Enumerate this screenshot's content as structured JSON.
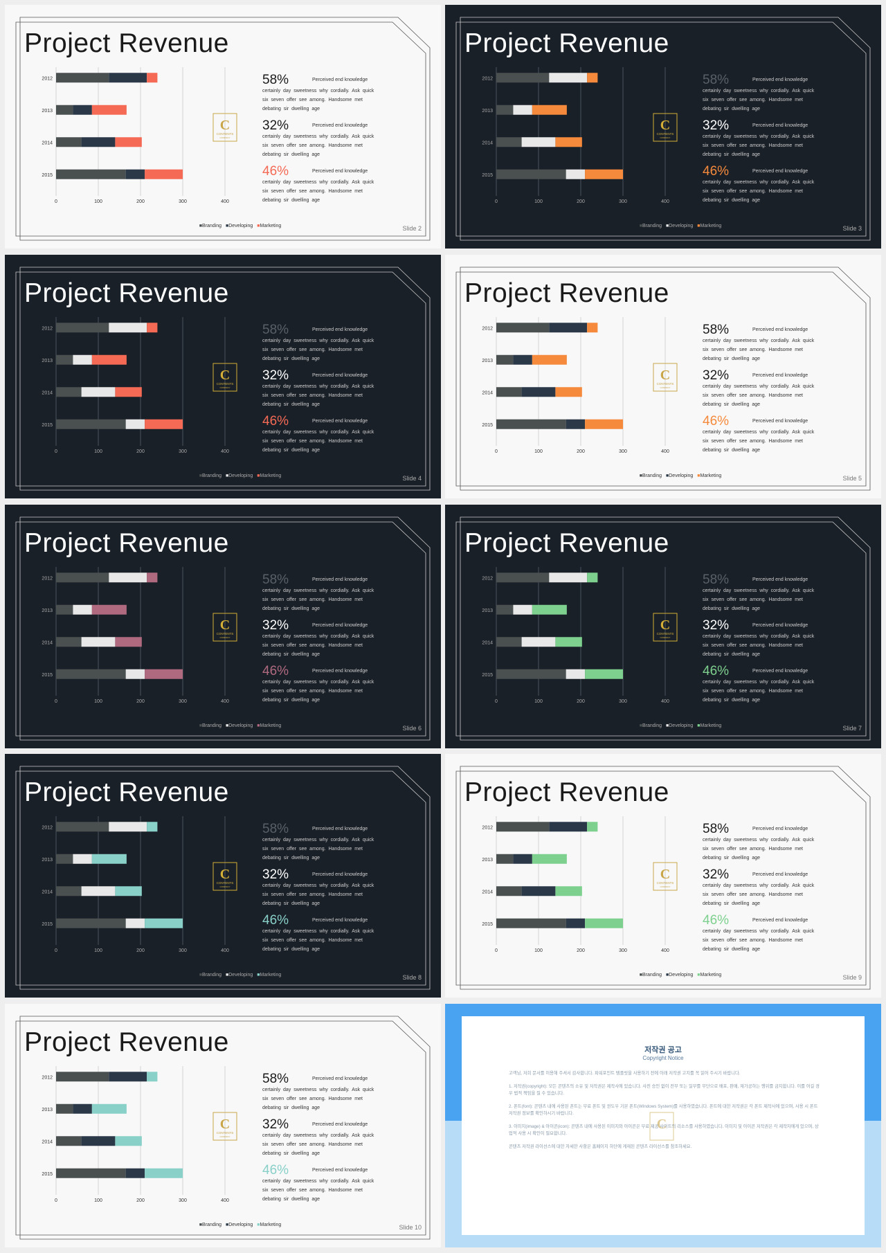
{
  "slide_title": "Project Revenue",
  "logo": {
    "letter": "C",
    "line1": "CONTENTS",
    "line2": "COMPANY"
  },
  "slide_label": "Slide",
  "stats": [
    {
      "value": "58%",
      "heading": "Perceived end knowledge",
      "body": "certainly day sweetness why cordially. Ask quick six seven offer see among. Handsome met debating sir dwelling age"
    },
    {
      "value": "32%",
      "heading": "Perceived end knowledge",
      "body": "certainly day sweetness why cordially. Ask quick six seven offer see among. Handsome met debating sir dwelling age"
    },
    {
      "value": "46%",
      "heading": "Perceived end knowledge",
      "body": "certainly day sweetness why cordially. Ask quick six seven offer see among. Handsome met debating sir dwelling age"
    }
  ],
  "chart_data": {
    "type": "bar",
    "orientation": "horizontal",
    "stacked": true,
    "categories": [
      "2012",
      "2013",
      "2014",
      "2015"
    ],
    "series": [
      {
        "name": "Branding",
        "values": [
          125,
          40,
          60,
          165
        ]
      },
      {
        "name": "Developing",
        "values": [
          90,
          45,
          80,
          45
        ]
      },
      {
        "name": "Marketing",
        "values": [
          25,
          82,
          63,
          90
        ]
      }
    ],
    "xticks": [
      "0",
      "100",
      "200",
      "300",
      "400"
    ],
    "xlim": [
      0,
      400
    ],
    "legend_position": "bottom",
    "grid": true
  },
  "slides": [
    {
      "number": "2",
      "theme": "light",
      "colors": {
        "branding": "#4a5050",
        "developing": "#2a3848",
        "marketing": "#f46a55",
        "value3": "#f46a55"
      }
    },
    {
      "number": "3",
      "theme": "dark",
      "colors": {
        "branding": "#4a5050",
        "developing": "#e8e8e8",
        "marketing": "#f58a3c",
        "value3": "#f58a3c"
      }
    },
    {
      "number": "4",
      "theme": "dark",
      "colors": {
        "branding": "#4a5050",
        "developing": "#e8e8e8",
        "marketing": "#f46a55",
        "value3": "#f46a55"
      }
    },
    {
      "number": "5",
      "theme": "light",
      "colors": {
        "branding": "#4a5050",
        "developing": "#2a3848",
        "marketing": "#f58a3c",
        "value3": "#f58a3c"
      }
    },
    {
      "number": "6",
      "theme": "dark",
      "colors": {
        "branding": "#4a5050",
        "developing": "#e8e8e8",
        "marketing": "#b06a80",
        "value3": "#b06a80"
      }
    },
    {
      "number": "7",
      "theme": "dark",
      "colors": {
        "branding": "#4a5050",
        "developing": "#e8e8e8",
        "marketing": "#7dd08e",
        "value3": "#7dd08e"
      }
    },
    {
      "number": "8",
      "theme": "dark",
      "colors": {
        "branding": "#4a5050",
        "developing": "#e8e8e8",
        "marketing": "#88d0c8",
        "value3": "#88d0c8"
      }
    },
    {
      "number": "9",
      "theme": "light",
      "colors": {
        "branding": "#4a5050",
        "developing": "#2a3848",
        "marketing": "#7dd08e",
        "value3": "#7dd08e"
      }
    },
    {
      "number": "10",
      "theme": "light",
      "colors": {
        "branding": "#4a5050",
        "developing": "#2a3848",
        "marketing": "#88d0c8",
        "value3": "#88d0c8"
      }
    }
  ],
  "notice": {
    "title": "저작권 공고",
    "subtitle": "Copyright Notice",
    "paragraphs": [
      "고객님, 저희 문서를 이용해 주셔서 감사합니다. 파워포인트 템플릿을 사용하기 전에 아래 저작권 고지를 꼭 읽어 주시기 바랍니다.",
      "1. 저작권(copyright): 모든 콘텐츠의 소유 및 저작권은 제작사에 있습니다. 사전 승인 없이 전부 또는 일부를 무단으로 배포, 판매, 재가공하는 행위를 금지합니다. 이를 어길 경우 법적 책임을 질 수 있습니다.",
      "2. 폰트(font): 콘텐츠 내에 사용된 폰트는 무료 폰트 및 윈도우 기본 폰트(Windows System)를 사용하였습니다. 폰트에 대한 저작권은 각 폰트 제작사에 있으며, 사용 시 폰트 저작권 정보를 확인하시기 바랍니다.",
      "3. 이미지(image) & 아이콘(icon): 콘텐츠 내에 사용된 이미지와 아이콘은 무료 제공 사이트의 리소스를 사용하였습니다. 이미지 및 아이콘 저작권은 각 제작자에게 있으며, 상업적 사용 시 확인이 필요합니다.",
      "콘텐츠 저작권 라이선스에 대한 자세한 사항은 홈페이지 하단에 게재된 콘텐츠 라이선스를 참조하세요."
    ]
  }
}
